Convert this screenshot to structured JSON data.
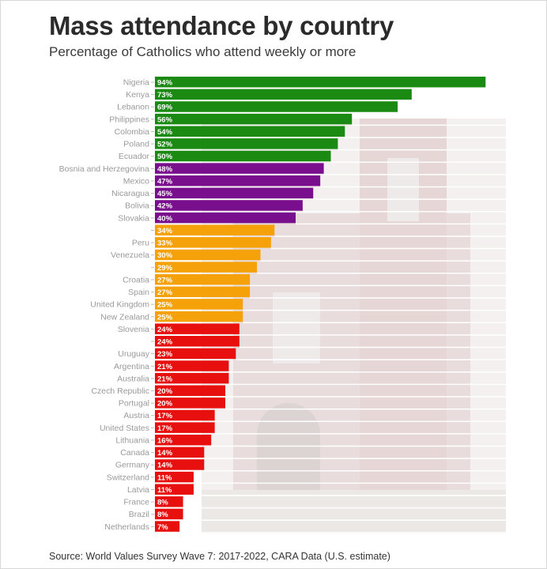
{
  "title": "Mass attendance by country",
  "subtitle": "Percentage of Catholics who attend weekly or more",
  "source": "Source: World Values Survey Wave 7: 2017-2022, CARA Data (U.S. estimate)",
  "colors": {
    "green": "#1a8a12",
    "purple": "#7a0f8e",
    "orange": "#f5a20a",
    "red": "#e8100f"
  },
  "chart_data": {
    "type": "bar",
    "orientation": "horizontal",
    "title": "Mass attendance by country",
    "subtitle": "Percentage of Catholics who attend weekly or more",
    "xlim": [
      0,
      100
    ],
    "grid": false,
    "categories": [
      "Nigeria",
      "Kenya",
      "Lebanon",
      "Philippines",
      "Colombia",
      "Poland",
      "Ecuador",
      "Bosnia and Herzegovina",
      "Mexico",
      "Nicaragua",
      "Bolivia",
      "Slovakia",
      "",
      "Peru",
      "Venezuela",
      "",
      "Croatia",
      "Spain",
      "United Kingdom",
      "New Zealand",
      "Slovenia",
      "",
      "Uruguay",
      "Argentina",
      "Australia",
      "Czech Republic",
      "Portugal",
      "Austria",
      "United States",
      "Lithuania",
      "Canada",
      "Germany",
      "Switzerland",
      "Latvia",
      "France",
      "Brazil",
      "Netherlands"
    ],
    "values": [
      94,
      73,
      69,
      56,
      54,
      52,
      50,
      48,
      47,
      45,
      42,
      40,
      34,
      33,
      30,
      29,
      27,
      27,
      25,
      25,
      24,
      24,
      23,
      21,
      21,
      20,
      20,
      17,
      17,
      16,
      14,
      14,
      11,
      11,
      8,
      8,
      7
    ],
    "groups": [
      "green",
      "green",
      "green",
      "green",
      "green",
      "green",
      "green",
      "purple",
      "purple",
      "purple",
      "purple",
      "purple",
      "orange",
      "orange",
      "orange",
      "orange",
      "orange",
      "orange",
      "orange",
      "orange",
      "red",
      "red",
      "red",
      "red",
      "red",
      "red",
      "red",
      "red",
      "red",
      "red",
      "red",
      "red",
      "red",
      "red",
      "red",
      "red",
      "red"
    ],
    "data_label_format": "{v}%"
  }
}
